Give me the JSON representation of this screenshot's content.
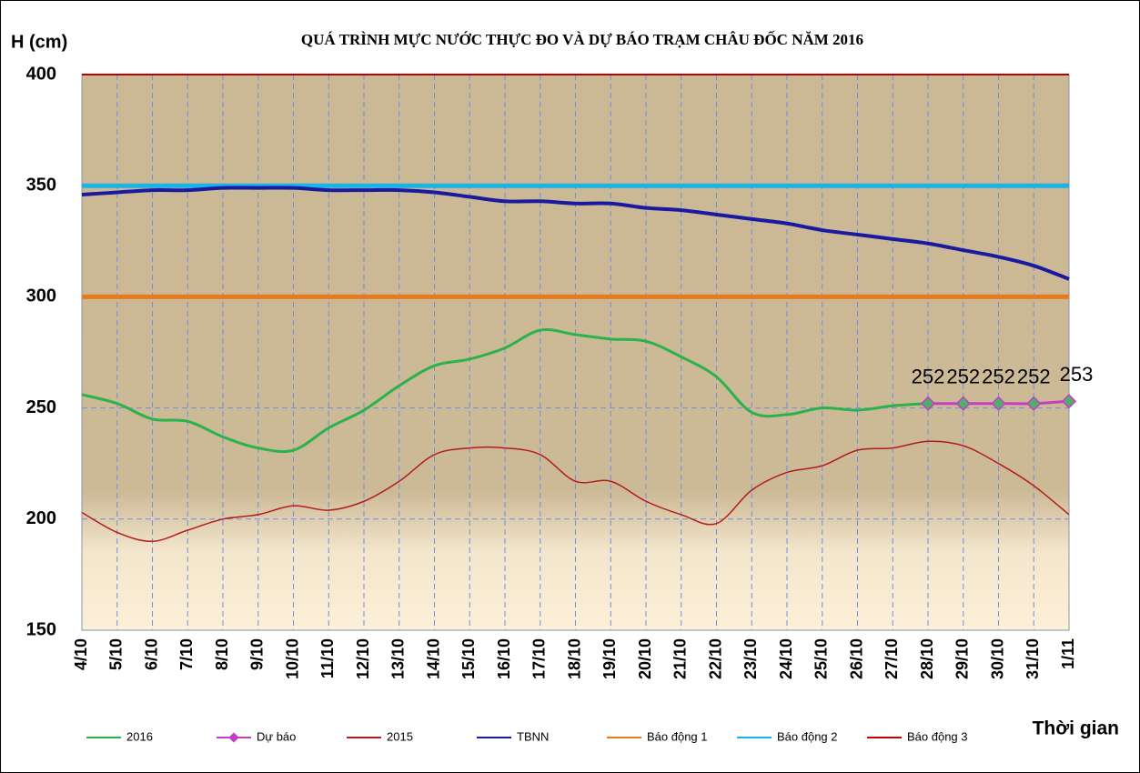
{
  "chart_data": {
    "type": "line",
    "title": "QUÁ TRÌNH MỰC NƯỚC THỰC ĐO VÀ DỰ BÁO TRẠM CHÂU ĐỐC  NĂM 2016",
    "y_label": "H (cm)",
    "x_label": "Thời gian",
    "categories": [
      "4/10",
      "5/10",
      "6/10",
      "7/10",
      "8/10",
      "9/10",
      "10/10",
      "11/10",
      "12/10",
      "13/10",
      "14/10",
      "15/10",
      "16/10",
      "17/10",
      "18/10",
      "19/10",
      "20/10",
      "21/10",
      "22/10",
      "23/10",
      "24/10",
      "25/10",
      "26/10",
      "27/10",
      "28/10",
      "29/10",
      "30/10",
      "31/10",
      "1/11"
    ],
    "series": [
      {
        "name": "2016",
        "color": "#2bb24c",
        "width": 3,
        "values": [
          256,
          252,
          245,
          244,
          237,
          232,
          231,
          241,
          249,
          260,
          269,
          272,
          277,
          285,
          283,
          281,
          280,
          273,
          264,
          248,
          247,
          250,
          249,
          251,
          252,
          null,
          null,
          null,
          null
        ]
      },
      {
        "name": "Dự báo",
        "color": "#c43dc4",
        "width": 3,
        "markers": true,
        "data_labels": true,
        "values": [
          null,
          null,
          null,
          null,
          null,
          null,
          null,
          null,
          null,
          null,
          null,
          null,
          null,
          null,
          null,
          null,
          null,
          null,
          null,
          null,
          null,
          null,
          null,
          null,
          252,
          252,
          252,
          252,
          253
        ]
      },
      {
        "name": "2015",
        "color": "#b31c1c",
        "width": 1.5,
        "values": [
          203,
          194,
          190,
          195,
          200,
          202,
          206,
          204,
          208,
          217,
          229,
          232,
          232,
          229,
          217,
          217,
          208,
          202,
          198,
          213,
          221,
          224,
          231,
          232,
          235,
          233,
          225,
          215,
          202
        ]
      },
      {
        "name": "TBNN",
        "color": "#1a1aa0",
        "width": 4,
        "values": [
          346,
          347,
          348,
          348,
          349,
          349,
          349,
          348,
          348,
          348,
          347,
          345,
          343,
          343,
          342,
          342,
          340,
          339,
          337,
          335,
          333,
          330,
          328,
          326,
          324,
          321,
          318,
          314,
          308
        ]
      }
    ],
    "thresholds": [
      {
        "name": "Báo động 1",
        "color": "#e87a1e",
        "value": 300
      },
      {
        "name": "Báo động 2",
        "color": "#1ab3e6",
        "value": 350
      },
      {
        "name": "Báo động 3",
        "color": "#c00000",
        "value": 400
      }
    ],
    "ylim": [
      150,
      400
    ],
    "yticks": [
      150,
      200,
      250,
      300,
      350,
      400
    ],
    "grid": true,
    "legend": "bottom"
  }
}
